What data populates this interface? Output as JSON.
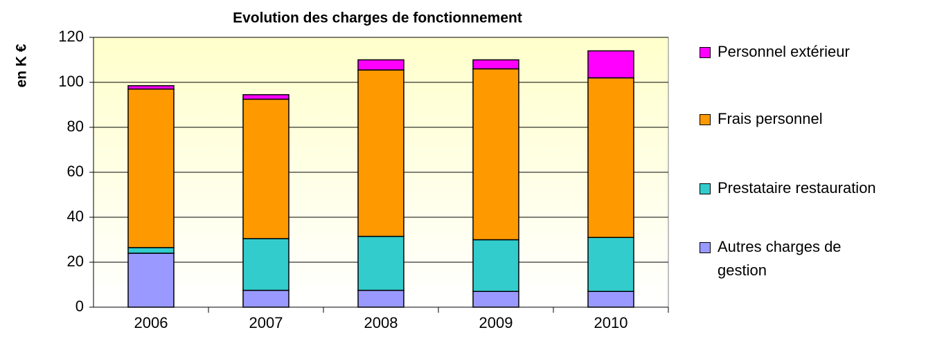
{
  "chart_data": {
    "type": "stacked_bar",
    "title": "Evolution des charges de fonctionnement",
    "y_label": "en K €",
    "categories": [
      "2006",
      "2007",
      "2008",
      "2009",
      "2010"
    ],
    "series": [
      {
        "name": "Autres charges de gestion",
        "color": "#9999ff",
        "values": [
          24,
          7.5,
          7.5,
          7,
          7
        ]
      },
      {
        "name": "Prestataire restauration",
        "color": "#33cccc",
        "values": [
          2.5,
          23,
          24,
          23,
          24
        ]
      },
      {
        "name": "Frais personnel",
        "color": "#ff9900",
        "values": [
          70.5,
          62,
          74,
          76,
          71
        ]
      },
      {
        "name": "Personnel extérieur",
        "color": "#ff00ff",
        "values": [
          1.5,
          2,
          4.5,
          4,
          12
        ]
      }
    ],
    "ylim": [
      0,
      120
    ],
    "yticks": [
      0,
      20,
      40,
      60,
      80,
      100,
      120
    ],
    "grid": true,
    "legend": "right"
  }
}
